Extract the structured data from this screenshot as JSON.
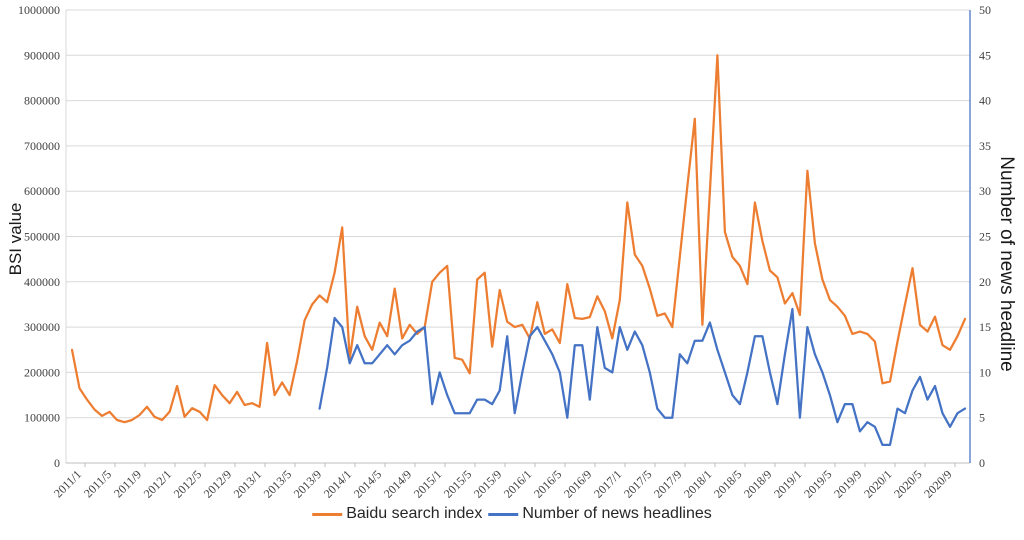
{
  "chart_data": {
    "type": "line",
    "title": "",
    "x_interval": "monthly",
    "x_start": "2011/1",
    "x_end": "2020/12",
    "x_tick_labels": [
      "2011/1",
      "2011/5",
      "2011/9",
      "2012/1",
      "2012/5",
      "2012/9",
      "2013/1",
      "2013/5",
      "2013/9",
      "2014/1",
      "2014/5",
      "2014/9",
      "2015/1",
      "2015/5",
      "2015/9",
      "2016/1",
      "2016/5",
      "2016/9",
      "2017/1",
      "2017/5",
      "2017/9",
      "2018/1",
      "2018/5",
      "2018/9",
      "2019/1",
      "2019/5",
      "2019/9",
      "2020/1",
      "2020/5",
      "2020/9"
    ],
    "left_axis": {
      "title": "BSI value",
      "min": 0,
      "max": 1000000,
      "step": 100000,
      "tick_labels": [
        "0",
        "100000",
        "200000",
        "300000",
        "400000",
        "500000",
        "600000",
        "700000",
        "800000",
        "900000",
        "1000000"
      ]
    },
    "right_axis": {
      "title": "Number of news headline",
      "min": 0,
      "max": 50,
      "step": 5,
      "tick_labels": [
        "0",
        "5",
        "10",
        "15",
        "20",
        "25",
        "30",
        "35",
        "40",
        "45",
        "50"
      ]
    },
    "grid": "horizontal",
    "legend_position": "bottom",
    "series": [
      {
        "name": "Baidu search index",
        "color": "#ED7D31",
        "axis": "left",
        "values": [
          250000,
          165000,
          140000,
          118000,
          104000,
          113000,
          95000,
          90000,
          95000,
          106000,
          124000,
          102000,
          95000,
          113000,
          170000,
          102000,
          121000,
          113000,
          95000,
          172000,
          150000,
          132000,
          157000,
          128000,
          132000,
          124000,
          265000,
          150000,
          178000,
          150000,
          225000,
          315000,
          350000,
          370000,
          355000,
          420000,
          520000,
          230000,
          345000,
          280000,
          250000,
          310000,
          280000,
          385000,
          275000,
          305000,
          285000,
          300000,
          400000,
          420000,
          435000,
          232000,
          228000,
          198000,
          405000,
          420000,
          257000,
          382000,
          312000,
          300000,
          305000,
          275000,
          355000,
          285000,
          295000,
          265000,
          395000,
          320000,
          318000,
          322000,
          368000,
          335000,
          275000,
          360000,
          575000,
          460000,
          435000,
          385000,
          325000,
          330000,
          300000,
          455000,
          610000,
          760000,
          305000,
          600000,
          900000,
          510000,
          455000,
          435000,
          395000,
          575000,
          490000,
          425000,
          410000,
          352000,
          375000,
          327000,
          645000,
          485000,
          405000,
          360000,
          345000,
          325000,
          285000,
          290000,
          285000,
          268000,
          176000,
          180000,
          268000,
          350000,
          430000,
          305000,
          290000,
          323000,
          260000,
          250000,
          280000,
          318000
        ]
      },
      {
        "name": "Number of news headlines",
        "color": "#4472C4",
        "axis": "right",
        "values": [
          null,
          null,
          null,
          null,
          null,
          null,
          null,
          null,
          null,
          null,
          null,
          null,
          null,
          null,
          null,
          null,
          null,
          null,
          null,
          null,
          null,
          null,
          null,
          null,
          null,
          null,
          null,
          null,
          null,
          null,
          null,
          null,
          null,
          6,
          10.5,
          16,
          15,
          11,
          13,
          11,
          11,
          12,
          13,
          12,
          13,
          13.5,
          14.5,
          15,
          6.5,
          10,
          7.5,
          5.5,
          5.5,
          5.5,
          7,
          7,
          6.5,
          8,
          14,
          5.5,
          10,
          14,
          15,
          13.5,
          12,
          10,
          5,
          13,
          13,
          7,
          15,
          10.5,
          10,
          15,
          12.5,
          14.5,
          13,
          10,
          6,
          5,
          5,
          12,
          11,
          13.5,
          13.5,
          15.5,
          12.5,
          10,
          7.5,
          6.5,
          10,
          14,
          14,
          10,
          6.5,
          12,
          17,
          5,
          15,
          12,
          10,
          7.5,
          4.5,
          6.5,
          6.5,
          3.5,
          4.5,
          4,
          2,
          2,
          6,
          5.5,
          8,
          9.5,
          7,
          8.5,
          5.5,
          4,
          5.5,
          6
        ]
      }
    ]
  },
  "colors": {
    "gridline": "#D9D9D9",
    "axis_line": "#BFBFBF",
    "tick_text": "#3F3F3F"
  }
}
